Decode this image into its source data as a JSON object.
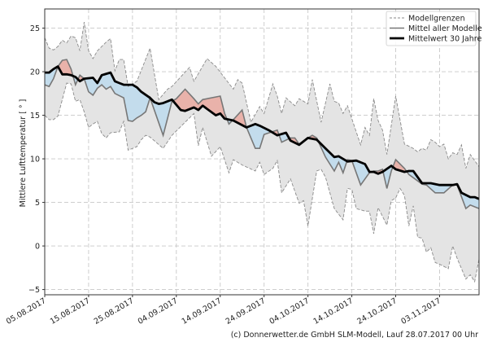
{
  "chart_data": {
    "type": "area",
    "title": "",
    "xlabel": "",
    "ylabel": "Mittlere Lufttemperatur [ ° ]",
    "xlim": [
      "05.08.2017",
      "12.11.2017"
    ],
    "ylim": [
      -5.6,
      27.2
    ],
    "yticks": [
      -5,
      0,
      5,
      10,
      15,
      20,
      25
    ],
    "xticks": [
      "05.08.2017",
      "15.08.2017",
      "25.08.2017",
      "04.09.2017",
      "14.09.2017",
      "24.09.2017",
      "04.10.2017",
      "14.10.2017",
      "24.10.2017",
      "03.11.2017"
    ],
    "grid": true,
    "legend_position": "top-right",
    "legend": [
      "Modellgrenzen",
      "Mittel aller Modelle",
      "Mittelwert 30 Jahre"
    ],
    "colors": {
      "range_fill": "#e4e4e4",
      "range_line": "#8a8a8a",
      "mean_line": "#777777",
      "climate_line": "#000000",
      "above_fill": "rgba(240,110,90,0.42)",
      "below_fill": "rgba(135,206,250,0.36)"
    },
    "series": {
      "upper": [
        [
          "05.08.2017",
          23.9
        ],
        [
          "06.08.2017",
          22.7
        ],
        [
          "07.08.2017",
          22.5
        ],
        [
          "08.08.2017",
          22.9
        ],
        [
          "09.08.2017",
          23.6
        ],
        [
          "10.08.2017",
          23.3
        ],
        [
          "11.08.2017",
          24.1
        ],
        [
          "12.08.2017",
          23.9
        ],
        [
          "13.08.2017",
          22.4
        ],
        [
          "14.08.2017",
          25.7
        ],
        [
          "15.08.2017",
          22.4
        ],
        [
          "16.08.2017",
          21.5
        ],
        [
          "17.08.2017",
          22.4
        ],
        [
          "19.08.2017",
          23.4
        ],
        [
          "20.08.2017",
          23.8
        ],
        [
          "21.08.2017",
          20.1
        ],
        [
          "22.08.2017",
          21.4
        ],
        [
          "23.08.2017",
          21.4
        ],
        [
          "24.08.2017",
          18.3
        ],
        [
          "25.08.2017",
          18.6
        ],
        [
          "26.08.2017",
          18.9
        ],
        [
          "29.08.2017",
          22.7
        ],
        [
          "31.08.2017",
          16.8
        ],
        [
          "02.09.2017",
          18.0
        ],
        [
          "03.09.2017",
          18.3
        ],
        [
          "07.09.2017",
          20.5
        ],
        [
          "08.09.2017",
          18.9
        ],
        [
          "11.09.2017",
          21.5
        ],
        [
          "13.09.2017",
          20.6
        ],
        [
          "17.09.2017",
          18.0
        ],
        [
          "18.09.2017",
          19.1
        ],
        [
          "19.09.2017",
          18.7
        ],
        [
          "21.09.2017",
          14.2
        ],
        [
          "23.09.2017",
          16.0
        ],
        [
          "24.09.2017",
          15.2
        ],
        [
          "26.09.2017",
          18.6
        ],
        [
          "27.09.2017",
          17.2
        ],
        [
          "28.09.2017",
          15.2
        ],
        [
          "29.09.2017",
          17.0
        ],
        [
          "01.10.2017",
          16.1
        ],
        [
          "02.10.2017",
          16.9
        ],
        [
          "04.10.2017",
          16.3
        ],
        [
          "05.10.2017",
          19.1
        ],
        [
          "07.10.2017",
          14.2
        ],
        [
          "09.10.2017",
          18.6
        ],
        [
          "10.10.2017",
          16.6
        ],
        [
          "11.10.2017",
          16.4
        ],
        [
          "12.10.2017",
          15.2
        ],
        [
          "13.10.2017",
          16.1
        ],
        [
          "16.10.2017",
          11.6
        ],
        [
          "17.10.2017",
          13.6
        ],
        [
          "18.10.2017",
          12.7
        ],
        [
          "19.10.2017",
          16.9
        ],
        [
          "20.10.2017",
          14.4
        ],
        [
          "21.10.2017",
          13.3
        ],
        [
          "22.10.2017",
          10.5
        ],
        [
          "24.10.2017",
          17.2
        ],
        [
          "26.10.2017",
          11.7
        ],
        [
          "28.10.2017",
          11.2
        ],
        [
          "29.10.2017",
          10.8
        ],
        [
          "30.10.2017",
          11.2
        ],
        [
          "31.10.2017",
          11.0
        ],
        [
          "01.11.2017",
          12.2
        ],
        [
          "02.11.2017",
          11.9
        ],
        [
          "03.11.2017",
          11.4
        ],
        [
          "04.11.2017",
          11.7
        ],
        [
          "05.11.2017",
          10.0
        ],
        [
          "06.11.2017",
          10.7
        ],
        [
          "07.11.2017",
          10.5
        ],
        [
          "08.11.2017",
          11.6
        ],
        [
          "09.11.2017",
          8.9
        ],
        [
          "10.11.2017",
          10.5
        ],
        [
          "12.11.2017",
          9.1
        ]
      ],
      "lower": [
        [
          "05.08.2017",
          15.0
        ],
        [
          "06.08.2017",
          14.5
        ],
        [
          "07.08.2017",
          14.5
        ],
        [
          "08.08.2017",
          14.9
        ],
        [
          "09.08.2017",
          16.8
        ],
        [
          "10.08.2017",
          18.7
        ],
        [
          "11.08.2017",
          18.6
        ],
        [
          "12.08.2017",
          16.6
        ],
        [
          "13.08.2017",
          16.8
        ],
        [
          "14.08.2017",
          15.4
        ],
        [
          "15.08.2017",
          13.6
        ],
        [
          "16.08.2017",
          14.0
        ],
        [
          "17.08.2017",
          14.3
        ],
        [
          "18.08.2017",
          12.9
        ],
        [
          "19.08.2017",
          12.4
        ],
        [
          "20.08.2017",
          13.0
        ],
        [
          "22.08.2017",
          13.1
        ],
        [
          "23.08.2017",
          14.3
        ],
        [
          "24.08.2017",
          11.0
        ],
        [
          "26.08.2017",
          11.4
        ],
        [
          "27.08.2017",
          12.2
        ],
        [
          "28.08.2017",
          12.7
        ],
        [
          "29.08.2017",
          12.5
        ],
        [
          "01.09.2017",
          11.2
        ],
        [
          "03.09.2017",
          12.7
        ],
        [
          "08.09.2017",
          15.2
        ],
        [
          "09.09.2017",
          11.5
        ],
        [
          "10.09.2017",
          13.6
        ],
        [
          "12.09.2017",
          10.3
        ],
        [
          "14.09.2017",
          11.4
        ],
        [
          "16.09.2017",
          8.4
        ],
        [
          "17.09.2017",
          9.9
        ],
        [
          "19.09.2017",
          9.3
        ],
        [
          "22.09.2017",
          8.6
        ],
        [
          "23.09.2017",
          9.6
        ],
        [
          "24.09.2017",
          8.2
        ],
        [
          "26.09.2017",
          8.9
        ],
        [
          "27.09.2017",
          9.8
        ],
        [
          "28.09.2017",
          6.1
        ],
        [
          "30.09.2017",
          7.7
        ],
        [
          "02.10.2017",
          4.9
        ],
        [
          "03.10.2017",
          5.2
        ],
        [
          "04.10.2017",
          2.3
        ],
        [
          "06.10.2017",
          8.6
        ],
        [
          "07.10.2017",
          8.8
        ],
        [
          "08.10.2017",
          7.9
        ],
        [
          "10.10.2017",
          4.3
        ],
        [
          "12.10.2017",
          3.0
        ],
        [
          "13.10.2017",
          6.6
        ],
        [
          "14.10.2017",
          6.5
        ],
        [
          "15.10.2017",
          4.3
        ],
        [
          "17.10.2017",
          4.0
        ],
        [
          "18.10.2017",
          4.0
        ],
        [
          "19.10.2017",
          1.4
        ],
        [
          "20.10.2017",
          4.4
        ],
        [
          "22.10.2017",
          2.4
        ],
        [
          "23.10.2017",
          5.2
        ],
        [
          "24.10.2017",
          5.5
        ],
        [
          "25.10.2017",
          6.6
        ],
        [
          "26.10.2017",
          5.8
        ],
        [
          "27.10.2017",
          2.3
        ],
        [
          "28.10.2017",
          4.6
        ],
        [
          "29.10.2017",
          1.0
        ],
        [
          "30.10.2017",
          0.9
        ],
        [
          "31.10.2017",
          -0.7
        ],
        [
          "01.11.2017",
          -0.2
        ],
        [
          "02.11.2017",
          -1.9
        ],
        [
          "03.11.2017",
          -2.1
        ],
        [
          "05.11.2017",
          -2.6
        ],
        [
          "06.11.2017",
          0.0
        ],
        [
          "07.11.2017",
          -1.4
        ],
        [
          "09.11.2017",
          -3.8
        ],
        [
          "10.11.2017",
          -3.3
        ],
        [
          "11.11.2017",
          -4.1
        ],
        [
          "12.11.2017",
          -1.5
        ]
      ],
      "models_mean": [
        [
          "05.08.2017",
          18.5
        ],
        [
          "06.08.2017",
          18.3
        ],
        [
          "07.08.2017",
          19.2
        ],
        [
          "08.08.2017",
          20.6
        ],
        [
          "09.08.2017",
          21.3
        ],
        [
          "10.08.2017",
          21.4
        ],
        [
          "11.08.2017",
          20.3
        ],
        [
          "12.08.2017",
          18.5
        ],
        [
          "13.08.2017",
          19.6
        ],
        [
          "14.08.2017",
          19.2
        ],
        [
          "15.08.2017",
          17.7
        ],
        [
          "16.08.2017",
          17.3
        ],
        [
          "17.08.2017",
          18.1
        ],
        [
          "18.08.2017",
          18.5
        ],
        [
          "19.08.2017",
          18.0
        ],
        [
          "20.08.2017",
          18.3
        ],
        [
          "21.08.2017",
          17.5
        ],
        [
          "23.08.2017",
          17.0
        ],
        [
          "24.08.2017",
          14.4
        ],
        [
          "25.08.2017",
          14.3
        ],
        [
          "26.08.2017",
          14.7
        ],
        [
          "27.08.2017",
          15.0
        ],
        [
          "28.08.2017",
          15.4
        ],
        [
          "29.08.2017",
          17.0
        ],
        [
          "01.09.2017",
          12.7
        ],
        [
          "03.09.2017",
          16.6
        ],
        [
          "04.09.2017",
          16.9
        ],
        [
          "06.09.2017",
          18.0
        ],
        [
          "08.09.2017",
          16.9
        ],
        [
          "09.09.2017",
          16.3
        ],
        [
          "10.09.2017",
          16.8
        ],
        [
          "14.09.2017",
          17.2
        ],
        [
          "15.09.2017",
          15.2
        ],
        [
          "16.09.2017",
          14.0
        ],
        [
          "17.09.2017",
          14.5
        ],
        [
          "19.09.2017",
          15.6
        ],
        [
          "20.09.2017",
          13.6
        ],
        [
          "22.09.2017",
          11.2
        ],
        [
          "23.09.2017",
          11.2
        ],
        [
          "24.09.2017",
          12.8
        ],
        [
          "27.09.2017",
          13.3
        ],
        [
          "28.09.2017",
          11.9
        ],
        [
          "30.09.2017",
          12.4
        ],
        [
          "01.10.2017",
          12.4
        ],
        [
          "02.10.2017",
          11.7
        ],
        [
          "04.10.2017",
          12.4
        ],
        [
          "05.10.2017",
          12.7
        ],
        [
          "06.10.2017",
          12.4
        ],
        [
          "08.10.2017",
          10.2
        ],
        [
          "10.10.2017",
          8.6
        ],
        [
          "11.10.2017",
          9.6
        ],
        [
          "12.10.2017",
          8.4
        ],
        [
          "13.10.2017",
          9.9
        ],
        [
          "14.10.2017",
          9.8
        ],
        [
          "16.10.2017",
          7.0
        ],
        [
          "18.10.2017",
          8.4
        ],
        [
          "19.10.2017",
          8.6
        ],
        [
          "20.10.2017",
          8.6
        ],
        [
          "21.10.2017",
          8.8
        ],
        [
          "22.10.2017",
          6.6
        ],
        [
          "23.10.2017",
          8.6
        ],
        [
          "24.10.2017",
          9.9
        ],
        [
          "26.10.2017",
          8.9
        ],
        [
          "27.10.2017",
          8.2
        ],
        [
          "30.10.2017",
          7.1
        ],
        [
          "31.10.2017",
          7.0
        ],
        [
          "02.11.2017",
          6.1
        ],
        [
          "04.11.2017",
          6.1
        ],
        [
          "06.11.2017",
          7.0
        ],
        [
          "07.11.2017",
          7.0
        ],
        [
          "09.11.2017",
          4.3
        ],
        [
          "10.11.2017",
          4.7
        ],
        [
          "12.11.2017",
          4.3
        ]
      ],
      "climate_mean": [
        [
          "05.08.2017",
          19.9
        ],
        [
          "06.08.2017",
          19.9
        ],
        [
          "07.08.2017",
          20.3
        ],
        [
          "08.08.2017",
          20.6
        ],
        [
          "09.08.2017",
          19.7
        ],
        [
          "10.08.2017",
          19.7
        ],
        [
          "11.08.2017",
          19.6
        ],
        [
          "12.08.2017",
          19.4
        ],
        [
          "13.08.2017",
          18.9
        ],
        [
          "14.08.2017",
          19.2
        ],
        [
          "16.08.2017",
          19.3
        ],
        [
          "17.08.2017",
          18.7
        ],
        [
          "18.08.2017",
          19.6
        ],
        [
          "20.08.2017",
          19.9
        ],
        [
          "21.08.2017",
          18.9
        ],
        [
          "22.08.2017",
          18.7
        ],
        [
          "23.08.2017",
          18.5
        ],
        [
          "25.08.2017",
          18.5
        ],
        [
          "26.08.2017",
          18.2
        ],
        [
          "27.08.2017",
          17.7
        ],
        [
          "29.08.2017",
          17.0
        ],
        [
          "30.08.2017",
          16.5
        ],
        [
          "31.08.2017",
          16.3
        ],
        [
          "01.09.2017",
          16.4
        ],
        [
          "03.09.2017",
          16.8
        ],
        [
          "05.09.2017",
          15.6
        ],
        [
          "06.09.2017",
          15.5
        ],
        [
          "08.09.2017",
          15.9
        ],
        [
          "09.09.2017",
          15.6
        ],
        [
          "10.09.2017",
          16.1
        ],
        [
          "13.09.2017",
          15.0
        ],
        [
          "14.09.2017",
          15.2
        ],
        [
          "15.09.2017",
          14.6
        ],
        [
          "17.09.2017",
          14.4
        ],
        [
          "20.09.2017",
          13.6
        ],
        [
          "22.09.2017",
          14.0
        ],
        [
          "23.09.2017",
          13.8
        ],
        [
          "25.09.2017",
          13.3
        ],
        [
          "27.09.2017",
          12.7
        ],
        [
          "29.09.2017",
          13.0
        ],
        [
          "30.09.2017",
          12.1
        ],
        [
          "02.10.2017",
          11.6
        ],
        [
          "04.10.2017",
          12.4
        ],
        [
          "06.10.2017",
          12.2
        ],
        [
          "08.10.2017",
          11.2
        ],
        [
          "10.10.2017",
          10.2
        ],
        [
          "11.10.2017",
          10.3
        ],
        [
          "13.10.2017",
          9.7
        ],
        [
          "15.10.2017",
          9.8
        ],
        [
          "17.10.2017",
          9.4
        ],
        [
          "18.10.2017",
          8.5
        ],
        [
          "19.10.2017",
          8.5
        ],
        [
          "20.10.2017",
          8.3
        ],
        [
          "21.10.2017",
          8.5
        ],
        [
          "23.10.2017",
          9.2
        ],
        [
          "24.10.2017",
          8.8
        ],
        [
          "26.10.2017",
          8.5
        ],
        [
          "27.10.2017",
          8.6
        ],
        [
          "28.10.2017",
          8.6
        ],
        [
          "30.10.2017",
          7.2
        ],
        [
          "01.11.2017",
          7.2
        ],
        [
          "03.11.2017",
          7.0
        ],
        [
          "06.11.2017",
          7.0
        ],
        [
          "07.11.2017",
          7.1
        ],
        [
          "08.11.2017",
          6.1
        ],
        [
          "10.11.2017",
          5.6
        ],
        [
          "11.11.2017",
          5.6
        ],
        [
          "12.11.2017",
          5.4
        ]
      ]
    }
  },
  "footer": "(c) Donnerwetter.de GmbH SLM-Modell, Lauf 28.07.2017 00 Uhr"
}
